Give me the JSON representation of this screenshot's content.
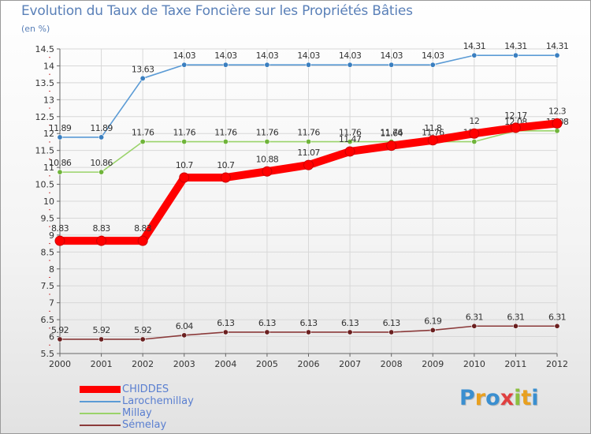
{
  "title": "Evolution du Taux de Taxe Foncière sur les Propriétés Bâties",
  "units_label": "(en %)",
  "logo": {
    "text": "Proxiti",
    "letters": [
      "P",
      "r",
      "o",
      "x",
      "i",
      "t",
      "i"
    ],
    "letter_colors": [
      "#3a8fd0",
      "#e8a020",
      "#3a8fd0",
      "#e04040",
      "#8cc040",
      "#e8a020",
      "#3a8fd0"
    ]
  },
  "colors": {
    "axis_text": "#333333",
    "grid": "#d8d8d8",
    "axis": "#666666",
    "title": "#5a80b8"
  },
  "chart_data": {
    "type": "line",
    "title": "Evolution du Taux de Taxe Foncière sur les Propriétés Bâties",
    "ylabel": "(en %)",
    "xlabel": "",
    "ylim": [
      5.5,
      14.5
    ],
    "ytick_step": 0.5,
    "grid": true,
    "legend_position": "bottom-left",
    "categories": [
      "2000",
      "2001",
      "2002",
      "2003",
      "2004",
      "2005",
      "2006",
      "2007",
      "2008",
      "2009",
      "2010",
      "2011",
      "2012"
    ],
    "series": [
      {
        "name": "Larochemillay",
        "color": "#5b9bd5",
        "marker": "#3a7fc0",
        "emphasis": false,
        "values": [
          11.89,
          11.89,
          13.63,
          14.03,
          14.03,
          14.03,
          14.03,
          14.03,
          14.03,
          14.03,
          14.31,
          14.31,
          14.31
        ],
        "labels": [
          "11.89",
          "11.89",
          "13.63",
          "14.03",
          "14.03",
          "14.03",
          "14.03",
          "14.03",
          "14.03",
          "14.03",
          "14.31",
          "14.31",
          "14.31"
        ]
      },
      {
        "name": "Millay",
        "color": "#9ad36a",
        "marker": "#6fb43a",
        "emphasis": false,
        "values": [
          10.86,
          10.86,
          11.76,
          11.76,
          11.76,
          11.76,
          11.76,
          11.76,
          11.76,
          11.76,
          11.76,
          12.08,
          12.08
        ],
        "labels": [
          "10.86",
          "10.86",
          "11.76",
          "11.76",
          "11.76",
          "11.76",
          "11.76",
          "11.76",
          "11.76",
          "11.76",
          "11.76",
          "12.08",
          "12.08"
        ]
      },
      {
        "name": "Sémelay",
        "color": "#8b3a3a",
        "marker": "#6a1f1f",
        "emphasis": false,
        "values": [
          5.92,
          5.92,
          5.92,
          6.04,
          6.13,
          6.13,
          6.13,
          6.13,
          6.13,
          6.19,
          6.31,
          6.31,
          6.31
        ],
        "labels": [
          "5.92",
          "5.92",
          "5.92",
          "6.04",
          "6.13",
          "6.13",
          "6.13",
          "6.13",
          "6.13",
          "6.19",
          "6.31",
          "6.31",
          "6.31"
        ]
      },
      {
        "name": "CHIDDES",
        "color": "#ff0000",
        "marker": "#ff0000",
        "emphasis": true,
        "values": [
          8.83,
          8.83,
          8.83,
          10.7,
          10.7,
          10.88,
          11.07,
          11.47,
          11.64,
          11.8,
          12.0,
          12.17,
          12.3
        ],
        "labels": [
          "8.83",
          "8.83",
          "8.83",
          "10.7",
          "10.7",
          "10.88",
          "11.07",
          "11.47",
          "11.64",
          "11.8",
          "12",
          "12.17",
          "12.3"
        ]
      }
    ],
    "legend_order": [
      "CHIDDES",
      "Larochemillay",
      "Millay",
      "Sémelay"
    ]
  }
}
